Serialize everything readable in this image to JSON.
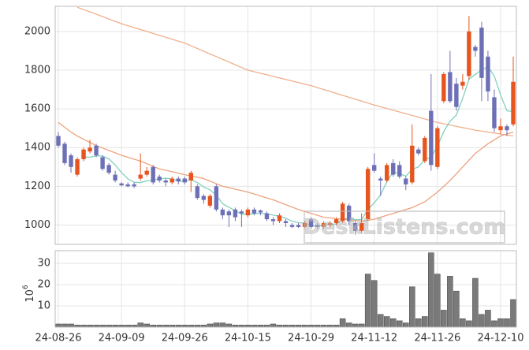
{
  "chart_data": [
    {
      "type": "candlestick",
      "open": [
        1460,
        1420,
        1360,
        1260,
        1340,
        1380,
        1410,
        1350,
        1310,
        1260,
        1215,
        1210,
        1210,
        1240,
        1260,
        1300,
        1250,
        1230,
        1220,
        1240,
        1240,
        1230,
        1200,
        1150,
        1100,
        1200,
        1080,
        1070,
        1080,
        1070,
        1050,
        1080,
        1075,
        1060,
        1030,
        1020,
        1020,
        1000,
        1000,
        990,
        1030,
        1000,
        990,
        1000,
        1010,
        1020,
        1100,
        1010,
        970,
        1030,
        1310,
        1240,
        1230,
        1320,
        1310,
        1240,
        1220,
        1390,
        1330,
        1590,
        1300,
        1640,
        1790,
        1730,
        1720,
        1770,
        1920,
        2020,
        1870,
        1660,
        1490,
        1510,
        1520
      ],
      "high": [
        1480,
        1430,
        1370,
        1350,
        1400,
        1440,
        1420,
        1360,
        1320,
        1280,
        1220,
        1220,
        1220,
        1370,
        1300,
        1310,
        1260,
        1240,
        1250,
        1250,
        1250,
        1280,
        1210,
        1160,
        1160,
        1210,
        1090,
        1080,
        1090,
        1080,
        1090,
        1090,
        1080,
        1070,
        1040,
        1060,
        1030,
        1010,
        1010,
        1020,
        1040,
        1010,
        1020,
        1020,
        1040,
        1120,
        1110,
        1020,
        1060,
        1300,
        1370,
        1250,
        1320,
        1340,
        1330,
        1250,
        1520,
        1400,
        1460,
        1780,
        1510,
        1790,
        1900,
        1760,
        1780,
        2080,
        1930,
        2050,
        1900,
        1700,
        1550,
        1520,
        1870
      ],
      "low": [
        1400,
        1310,
        1270,
        1250,
        1330,
        1370,
        1350,
        1280,
        1260,
        1220,
        1200,
        1195,
        1190,
        1230,
        1250,
        1210,
        1220,
        1200,
        1210,
        1210,
        1210,
        1170,
        1130,
        1110,
        1090,
        1070,
        1030,
        990,
        1020,
        990,
        1040,
        1050,
        1050,
        1020,
        1000,
        1010,
        990,
        985,
        985,
        985,
        980,
        980,
        980,
        990,
        1000,
        1010,
        1000,
        950,
        960,
        1020,
        1270,
        1150,
        1220,
        1250,
        1240,
        1180,
        1210,
        1360,
        1320,
        1280,
        1290,
        1630,
        1630,
        1590,
        1700,
        1750,
        1870,
        1640,
        1640,
        1480,
        1470,
        1460,
        1510
      ],
      "close": [
        1410,
        1320,
        1300,
        1340,
        1390,
        1400,
        1360,
        1290,
        1270,
        1230,
        1205,
        1200,
        1200,
        1260,
        1280,
        1220,
        1230,
        1220,
        1240,
        1225,
        1220,
        1270,
        1140,
        1130,
        1150,
        1080,
        1050,
        1050,
        1040,
        1060,
        1080,
        1060,
        1065,
        1030,
        1020,
        1050,
        1010,
        990,
        990,
        1010,
        990,
        990,
        1010,
        1010,
        1030,
        1110,
        1020,
        970,
        1010,
        1290,
        1280,
        1230,
        1310,
        1260,
        1250,
        1210,
        1410,
        1370,
        1450,
        1310,
        1500,
        1780,
        1640,
        1610,
        1740,
        2000,
        1900,
        1760,
        1690,
        1500,
        1510,
        1490,
        1740
      ],
      "up_color": "#e8541e",
      "down_color": "#6e70b6",
      "lines": [
        {
          "color": "#f0b08c",
          "values": [
            null,
            null,
            null,
            2125,
            2113,
            2101,
            2089,
            2077,
            2064,
            2052,
            2040,
            2030,
            2020,
            2010,
            2000,
            1990,
            1980,
            1970,
            1960,
            1950,
            1940,
            1926,
            1912,
            1898,
            1884,
            1870,
            1856,
            1842,
            1828,
            1814,
            1800,
            1792,
            1784,
            1776,
            1768,
            1760,
            1752,
            1744,
            1736,
            1728,
            1720,
            1710,
            1700,
            1690,
            1680,
            1670,
            1660,
            1650,
            1640,
            1630,
            1620,
            1611,
            1602,
            1593,
            1584,
            1575,
            1566,
            1557,
            1548,
            1539,
            1530,
            1523,
            1517,
            1510,
            1503,
            1497,
            1490,
            1485,
            1480,
            1475,
            1470,
            1465,
            1460
          ]
        },
        {
          "color": "#eea27e",
          "values": [
            1530,
            1505,
            1480,
            1460,
            1443,
            1427,
            1410,
            1398,
            1385,
            1373,
            1360,
            1350,
            1340,
            1330,
            1317,
            1303,
            1290,
            1283,
            1275,
            1268,
            1260,
            1253,
            1247,
            1240,
            1227,
            1213,
            1200,
            1193,
            1185,
            1178,
            1170,
            1160,
            1150,
            1140,
            1130,
            1118,
            1105,
            1093,
            1080,
            1070,
            1060,
            1050,
            1040,
            1037,
            1033,
            1030,
            1027,
            1023,
            1020,
            1025,
            1030,
            1040,
            1050,
            1060,
            1070,
            1080,
            1090,
            1105,
            1120,
            1145,
            1170,
            1200,
            1230,
            1265,
            1300,
            1335,
            1370,
            1395,
            1420,
            1440,
            1460,
            1470,
            1480
          ]
        },
        {
          "color": "#7fd1c0",
          "values": [
            null,
            null,
            null,
            null,
            1352,
            1350,
            1358,
            1356,
            1342,
            1310,
            1271,
            1239,
            1221,
            1219,
            1229,
            1232,
            1238,
            1242,
            1238,
            1227,
            1227,
            1235,
            1219,
            1197,
            1182,
            1154,
            1110,
            1092,
            1074,
            1056,
            1056,
            1058,
            1061,
            1059,
            1051,
            1045,
            1035,
            1020,
            1012,
            1010,
            998,
            994,
            998,
            1002,
            1006,
            1030,
            1036,
            1028,
            1028,
            1080,
            1114,
            1156,
            1224,
            1274,
            1266,
            1252,
            1288,
            1300,
            1338,
            1350,
            1408,
            1482,
            1536,
            1568,
            1654,
            1754,
            1778,
            1802,
            1818,
            1770,
            1672,
            1590,
            1586
          ]
        }
      ],
      "ylim": [
        900,
        2130
      ],
      "yticks": [
        1000,
        1200,
        1400,
        1600,
        1800,
        2000
      ],
      "grid": true,
      "watermark": "DeskListens.com"
    },
    {
      "type": "bar",
      "categories": [
        "24-08-26",
        null,
        null,
        null,
        null,
        null,
        null,
        null,
        null,
        null,
        "24-09-09",
        null,
        null,
        null,
        null,
        null,
        null,
        null,
        null,
        null,
        "24-09-26",
        null,
        null,
        null,
        null,
        null,
        null,
        null,
        null,
        null,
        "24-10-15",
        null,
        null,
        null,
        null,
        null,
        null,
        null,
        null,
        null,
        "24-10-29",
        null,
        null,
        null,
        null,
        null,
        null,
        null,
        null,
        null,
        "24-11-12",
        null,
        null,
        null,
        null,
        null,
        null,
        null,
        null,
        null,
        "24-11-26",
        null,
        null,
        null,
        null,
        null,
        null,
        null,
        null,
        null,
        "24-12-10",
        null,
        null
      ],
      "values": [
        1.5,
        1.5,
        1.5,
        1,
        1,
        1,
        1,
        1,
        1,
        1,
        1,
        1,
        1,
        2,
        1.5,
        1,
        1,
        1,
        1,
        1,
        1,
        1,
        1,
        1,
        1.5,
        2,
        2,
        1.5,
        1,
        1,
        1,
        1,
        1,
        1,
        1.5,
        1,
        1,
        1,
        1,
        1,
        1,
        1,
        1,
        1,
        1,
        4,
        2,
        1.5,
        1.5,
        25,
        22,
        6,
        5,
        4,
        3,
        2,
        19,
        4,
        5,
        35,
        25,
        8,
        24,
        17,
        4,
        3,
        23,
        6,
        8,
        3,
        4,
        4,
        13
      ],
      "color": "#7a7a7a",
      "ylim": [
        0,
        36
      ],
      "yticks": [
        10,
        20,
        30
      ],
      "grid": true,
      "ylabel_base": "10",
      "ylabel_exponent": "6"
    }
  ]
}
